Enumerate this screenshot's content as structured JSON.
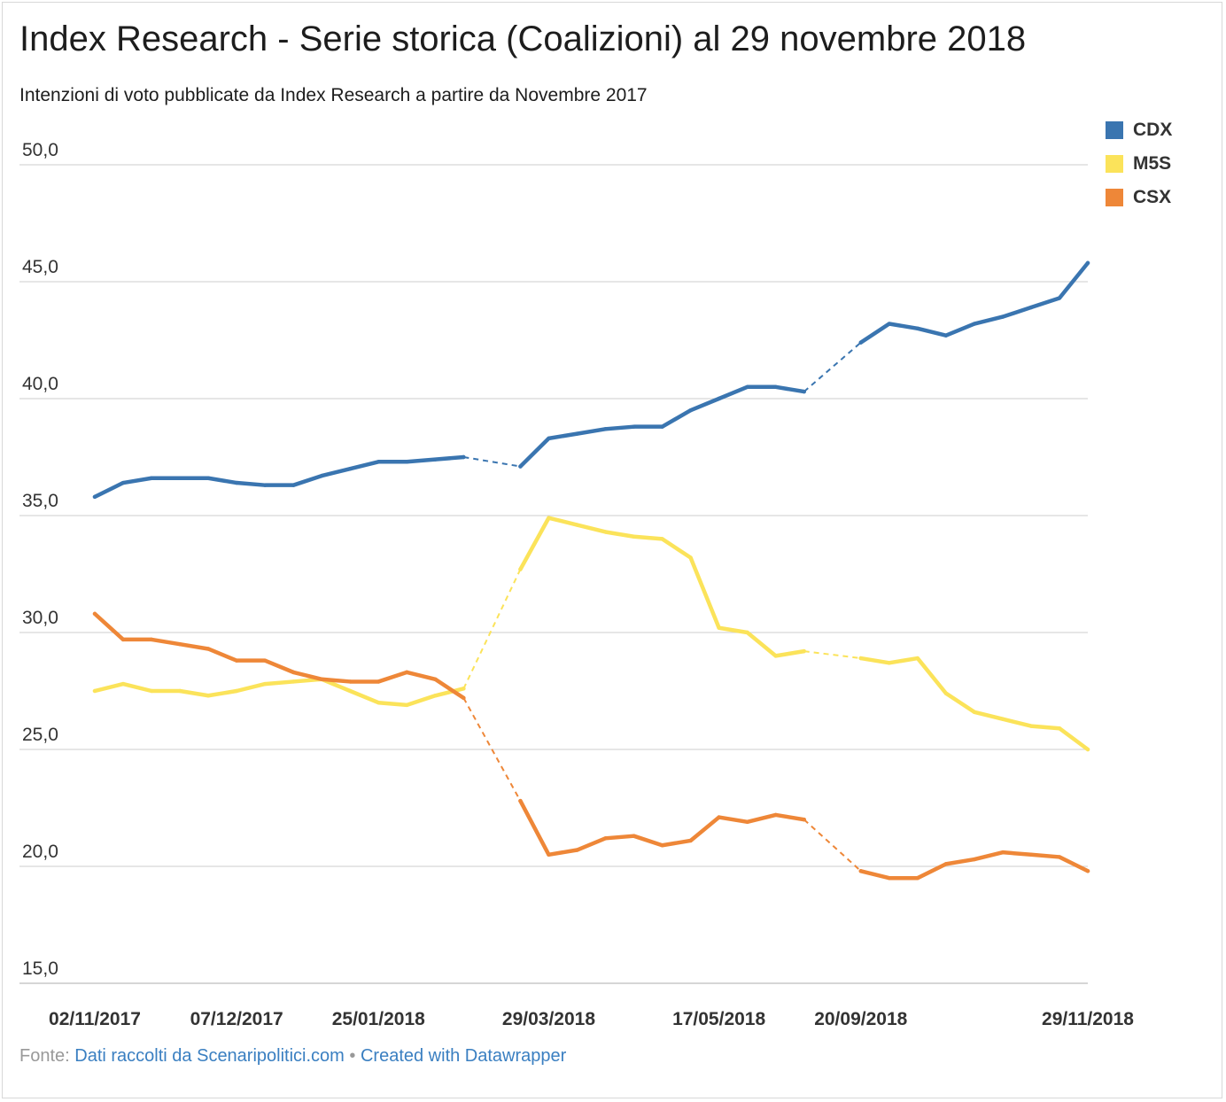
{
  "title": "Index Research - Serie storica (Coalizioni) al 29 novembre 2018",
  "subtitle": "Intenzioni di voto pubblicate da Index Research a partire da Novembre 2017",
  "footer": {
    "prefix": "Fonte:",
    "source": "Dati raccolti da Scenaripolitici.com",
    "separator": "•",
    "credit": "Created with Datawrapper"
  },
  "colors": {
    "CDX": "#3a75b0",
    "M5S": "#fbe35a",
    "CSX": "#ee8738",
    "grid": "#d6d6d6",
    "axis_text": "#333333"
  },
  "chart_data": {
    "type": "line",
    "title": "Index Research - Serie storica (Coalizioni) al 29 novembre 2018",
    "ylim": [
      15,
      50
    ],
    "yticks": [
      "50,0",
      "45,0",
      "40,0",
      "35,0",
      "30,0",
      "25,0",
      "20,0",
      "15,0"
    ],
    "ytick_values": [
      50,
      45,
      40,
      35,
      30,
      25,
      20,
      15
    ],
    "xtick_labels": [
      "02/11/2017",
      "07/12/2017",
      "25/01/2018",
      "29/03/2018",
      "17/05/2018",
      "20/09/2018",
      "29/11/2018"
    ],
    "xtick_indices": [
      0,
      5,
      10,
      16,
      22,
      27,
      35
    ],
    "grid": true,
    "legend": "top-right",
    "gaps_dashed": true,
    "n_points": 36,
    "series": [
      {
        "name": "CDX",
        "values": [
          35.8,
          36.4,
          36.6,
          36.6,
          36.6,
          36.4,
          36.3,
          36.3,
          36.7,
          37.0,
          37.3,
          37.3,
          37.4,
          37.5,
          null,
          37.1,
          38.3,
          38.5,
          38.7,
          38.8,
          38.8,
          39.5,
          40.0,
          40.5,
          40.5,
          40.3,
          null,
          42.4,
          43.2,
          43.0,
          42.7,
          43.2,
          43.5,
          43.9,
          44.3,
          45.8
        ]
      },
      {
        "name": "M5S",
        "values": [
          27.5,
          27.8,
          27.5,
          27.5,
          27.3,
          27.5,
          27.8,
          27.9,
          28.0,
          27.5,
          27.0,
          26.9,
          27.3,
          27.6,
          null,
          32.7,
          34.9,
          34.6,
          34.3,
          34.1,
          34.0,
          33.2,
          30.2,
          30.0,
          29.0,
          29.2,
          null,
          28.9,
          28.7,
          28.9,
          27.4,
          26.6,
          26.3,
          26.0,
          25.9,
          25.0
        ]
      },
      {
        "name": "CSX",
        "values": [
          30.8,
          29.7,
          29.7,
          29.5,
          29.3,
          28.8,
          28.8,
          28.3,
          28.0,
          27.9,
          27.9,
          28.3,
          28.0,
          27.2,
          null,
          22.8,
          20.5,
          20.7,
          21.2,
          21.3,
          20.9,
          21.1,
          22.1,
          21.9,
          22.2,
          22.0,
          null,
          19.8,
          19.5,
          19.5,
          20.1,
          20.3,
          20.6,
          20.5,
          20.4,
          19.8
        ]
      }
    ]
  }
}
